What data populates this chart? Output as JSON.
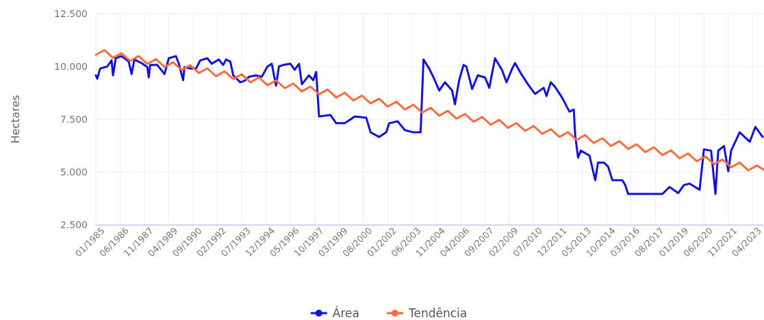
{
  "chart_data": {
    "type": "line",
    "ylabel": "Hectares",
    "legend": "bottom",
    "grid": true,
    "xlim": [
      "1985-01",
      "2023-12"
    ],
    "ylim": [
      2500,
      12500
    ],
    "yticks": [
      {
        "value": 2500,
        "label": "2.500"
      },
      {
        "value": 5000,
        "label": "5.000"
      },
      {
        "value": 7500,
        "label": "7.500"
      },
      {
        "value": 10000,
        "label": "10.000"
      },
      {
        "value": 12500,
        "label": "12.500"
      }
    ],
    "xticks": [
      {
        "value": "1985-01",
        "label": "01/1985"
      },
      {
        "value": "1986-06",
        "label": "06/1986"
      },
      {
        "value": "1987-11",
        "label": "11/1987"
      },
      {
        "value": "1989-04",
        "label": "04/1989"
      },
      {
        "value": "1990-09",
        "label": "09/1990"
      },
      {
        "value": "1992-02",
        "label": "02/1992"
      },
      {
        "value": "1993-07",
        "label": "07/1993"
      },
      {
        "value": "1994-12",
        "label": "12/1994"
      },
      {
        "value": "1996-05",
        "label": "05/1996"
      },
      {
        "value": "1997-10",
        "label": "10/1997"
      },
      {
        "value": "1999-03",
        "label": "03/1999"
      },
      {
        "value": "2000-08",
        "label": "08/2000"
      },
      {
        "value": "2002-01",
        "label": "01/2002"
      },
      {
        "value": "2003-06",
        "label": "06/2003"
      },
      {
        "value": "2004-11",
        "label": "11/2004"
      },
      {
        "value": "2006-04",
        "label": "04/2006"
      },
      {
        "value": "2007-09",
        "label": "09/2007"
      },
      {
        "value": "2009-02",
        "label": "02/2009"
      },
      {
        "value": "2010-07",
        "label": "07/2010"
      },
      {
        "value": "2011-12",
        "label": "12/2011"
      },
      {
        "value": "2013-05",
        "label": "05/2013"
      },
      {
        "value": "2014-10",
        "label": "10/2014"
      },
      {
        "value": "2016-03",
        "label": "03/2016"
      },
      {
        "value": "2017-08",
        "label": "08/2017"
      },
      {
        "value": "2019-01",
        "label": "01/2019"
      },
      {
        "value": "2020-06",
        "label": "06/2020"
      },
      {
        "value": "2021-11",
        "label": "11/2021"
      },
      {
        "value": "2023-04",
        "label": "04/2023"
      }
    ],
    "series": [
      {
        "name": "Área",
        "color": "#1010e0",
        "x": [
          "1985-01",
          "1985-02",
          "1985-04",
          "1985-09",
          "1985-12",
          "1986-01",
          "1986-03",
          "1986-07",
          "1986-12",
          "1987-02",
          "1987-04",
          "1987-09",
          "1988-01",
          "1988-02",
          "1988-03",
          "1988-08",
          "1989-01",
          "1989-04",
          "1989-09",
          "1989-11",
          "1990-02",
          "1990-03",
          "1990-07",
          "1990-11",
          "1991-02",
          "1991-07",
          "1991-10",
          "1992-03",
          "1992-06",
          "1992-08",
          "1992-11",
          "1993-01",
          "1993-06",
          "1993-09",
          "1993-12",
          "1994-05",
          "1994-09",
          "1995-01",
          "1995-04",
          "1995-07",
          "1995-09",
          "1995-12",
          "1996-05",
          "1996-08",
          "1996-11",
          "1997-01",
          "1997-06",
          "1997-09",
          "1997-11",
          "1998-01",
          "1998-09",
          "1999-01",
          "1999-07",
          "2000-02",
          "2000-10",
          "2001-01",
          "2001-07",
          "2001-12",
          "2002-02",
          "2002-08",
          "2003-01",
          "2003-07",
          "2003-12",
          "2004-02",
          "2004-06",
          "2004-09",
          "2005-01",
          "2005-05",
          "2005-10",
          "2005-12",
          "2006-03",
          "2006-06",
          "2006-08",
          "2006-12",
          "2007-04",
          "2007-09",
          "2007-12",
          "2008-04",
          "2008-09",
          "2008-12",
          "2009-04",
          "2009-06",
          "2009-10",
          "2010-03",
          "2010-08",
          "2011-02",
          "2011-04",
          "2011-07",
          "2011-10",
          "2012-03",
          "2012-08",
          "2012-11",
          "2012-12",
          "2013-02",
          "2013-04",
          "2013-10",
          "2014-02",
          "2014-04",
          "2014-08",
          "2014-11",
          "2015-02",
          "2015-09",
          "2015-11",
          "2016-01",
          "2016-12",
          "2018-01",
          "2018-06",
          "2018-12",
          "2019-04",
          "2019-08",
          "2020-03",
          "2020-06",
          "2020-11",
          "2021-02",
          "2021-04",
          "2021-08",
          "2021-11",
          "2022-01",
          "2022-07",
          "2023-02",
          "2023-06",
          "2023-11"
        ],
        "values": [
          9580,
          9420,
          9900,
          10000,
          10290,
          9580,
          10390,
          10490,
          10230,
          9640,
          10330,
          10160,
          9970,
          9480,
          10070,
          10070,
          9640,
          10390,
          10490,
          10130,
          9350,
          9970,
          9900,
          9900,
          10290,
          10390,
          10130,
          10330,
          10070,
          10330,
          10230,
          9580,
          9250,
          9320,
          9510,
          9580,
          9510,
          10000,
          10130,
          9090,
          10000,
          10070,
          10130,
          9840,
          10130,
          9160,
          9580,
          9350,
          9740,
          7630,
          7700,
          7310,
          7310,
          7630,
          7570,
          6880,
          6660,
          6880,
          7310,
          7400,
          6980,
          6880,
          6880,
          10330,
          9900,
          9480,
          8860,
          9250,
          8860,
          8210,
          9350,
          10070,
          10000,
          8930,
          9580,
          9480,
          8990,
          10390,
          9810,
          9250,
          9900,
          10160,
          9680,
          9160,
          8700,
          8990,
          8600,
          9250,
          9030,
          8510,
          7860,
          7960,
          6750,
          5680,
          6010,
          5780,
          4610,
          5450,
          5450,
          5260,
          4610,
          4610,
          4380,
          3960,
          3960,
          3960,
          4290,
          4000,
          4380,
          4450,
          4160,
          6070,
          6010,
          3960,
          6010,
          6230,
          5030,
          6010,
          6880,
          6430,
          7140,
          6660
        ]
      },
      {
        "name": "Tendência",
        "color": "#ff6b3d",
        "x": [
          "1985-01",
          "1985-07",
          "1986-01",
          "1986-07",
          "1987-01",
          "1987-07",
          "1988-01",
          "1988-07",
          "1989-01",
          "1989-07",
          "1990-01",
          "1990-07",
          "1991-01",
          "1991-07",
          "1992-01",
          "1992-07",
          "1993-01",
          "1993-07",
          "1994-01",
          "1994-07",
          "1995-01",
          "1995-07",
          "1996-01",
          "1996-07",
          "1997-01",
          "1997-07",
          "1998-01",
          "1998-07",
          "1999-01",
          "1999-07",
          "2000-01",
          "2000-07",
          "2001-01",
          "2001-07",
          "2002-01",
          "2002-07",
          "2003-01",
          "2003-07",
          "2004-01",
          "2004-07",
          "2005-01",
          "2005-07",
          "2006-01",
          "2006-07",
          "2007-01",
          "2007-07",
          "2008-01",
          "2008-07",
          "2009-01",
          "2009-07",
          "2010-01",
          "2010-07",
          "2011-01",
          "2011-07",
          "2012-01",
          "2012-07",
          "2013-01",
          "2013-07",
          "2014-01",
          "2014-07",
          "2015-01",
          "2015-07",
          "2016-01",
          "2016-07",
          "2017-01",
          "2017-07",
          "2018-01",
          "2018-07",
          "2019-01",
          "2019-07",
          "2020-01",
          "2020-07",
          "2021-01",
          "2021-07",
          "2022-01",
          "2022-07",
          "2023-01",
          "2023-07",
          "2023-12"
        ],
        "values": [
          10550,
          10780,
          10410,
          10630,
          10260,
          10490,
          10120,
          10350,
          9970,
          10200,
          9830,
          10060,
          9690,
          9910,
          9540,
          9770,
          9400,
          9630,
          9250,
          9480,
          9110,
          9340,
          8970,
          9190,
          8820,
          9050,
          8680,
          8910,
          8530,
          8760,
          8390,
          8620,
          8250,
          8470,
          8100,
          8330,
          7960,
          8190,
          7810,
          8040,
          7670,
          7900,
          7530,
          7750,
          7380,
          7610,
          7240,
          7470,
          7090,
          7320,
          6950,
          7180,
          6810,
          7030,
          6660,
          6890,
          6520,
          6750,
          6370,
          6600,
          6230,
          6460,
          6090,
          6310,
          5940,
          6170,
          5800,
          6030,
          5650,
          5880,
          5510,
          5740,
          5370,
          5590,
          5220,
          5450,
          5080,
          5310,
          5100
        ]
      }
    ]
  }
}
